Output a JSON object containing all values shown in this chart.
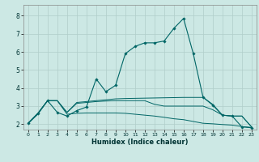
{
  "xlabel": "Humidex (Indice chaleur)",
  "background_color": "#cce8e4",
  "grid_color": "#b0ceca",
  "line_color": "#006666",
  "xlim": [
    -0.5,
    23.5
  ],
  "ylim": [
    1.7,
    8.6
  ],
  "xticks": [
    0,
    1,
    2,
    3,
    4,
    5,
    6,
    7,
    8,
    9,
    10,
    11,
    12,
    13,
    14,
    15,
    16,
    17,
    18,
    19,
    20,
    21,
    22,
    23
  ],
  "yticks": [
    2,
    3,
    4,
    5,
    6,
    7,
    8
  ],
  "line1_x": [
    0,
    1,
    2,
    3,
    4,
    5,
    6,
    7,
    8,
    9,
    10,
    11,
    12,
    13,
    14,
    15,
    16,
    17,
    18,
    19,
    20,
    21,
    22,
    23
  ],
  "line1_y": [
    2.05,
    2.6,
    3.3,
    2.65,
    2.45,
    2.75,
    2.95,
    4.5,
    3.8,
    4.15,
    5.9,
    6.3,
    6.5,
    6.5,
    6.6,
    7.3,
    7.85,
    5.9,
    3.5,
    3.05,
    2.5,
    2.45,
    1.85,
    1.8
  ],
  "line2_x": [
    0,
    1,
    2,
    3,
    4,
    5,
    6,
    7,
    8,
    9,
    10,
    11,
    12,
    13,
    14,
    15,
    16,
    17,
    18,
    19,
    20,
    21,
    22,
    23
  ],
  "line2_y": [
    2.05,
    2.6,
    3.3,
    3.3,
    2.65,
    3.2,
    3.25,
    3.3,
    3.35,
    3.4,
    3.42,
    3.43,
    3.44,
    3.45,
    3.46,
    3.47,
    3.48,
    3.48,
    3.48,
    3.1,
    2.5,
    2.45,
    2.45,
    1.85
  ],
  "line3_x": [
    0,
    1,
    2,
    3,
    4,
    5,
    6,
    7,
    8,
    9,
    10,
    11,
    12,
    13,
    14,
    15,
    16,
    17,
    18,
    19,
    20,
    21,
    22,
    23
  ],
  "line3_y": [
    2.05,
    2.6,
    3.3,
    3.3,
    2.65,
    3.15,
    3.2,
    3.25,
    3.28,
    3.3,
    3.3,
    3.3,
    3.3,
    3.1,
    3.0,
    3.0,
    3.0,
    3.0,
    3.0,
    2.8,
    2.5,
    2.45,
    2.45,
    1.85
  ],
  "line4_x": [
    0,
    1,
    2,
    3,
    4,
    5,
    6,
    7,
    8,
    9,
    10,
    11,
    12,
    13,
    14,
    15,
    16,
    17,
    18,
    19,
    20,
    21,
    22,
    23
  ],
  "line4_y": [
    2.05,
    2.55,
    3.3,
    3.3,
    2.55,
    2.6,
    2.62,
    2.62,
    2.62,
    2.62,
    2.6,
    2.55,
    2.5,
    2.45,
    2.38,
    2.3,
    2.25,
    2.15,
    2.05,
    2.02,
    1.98,
    1.95,
    1.87,
    1.82
  ]
}
